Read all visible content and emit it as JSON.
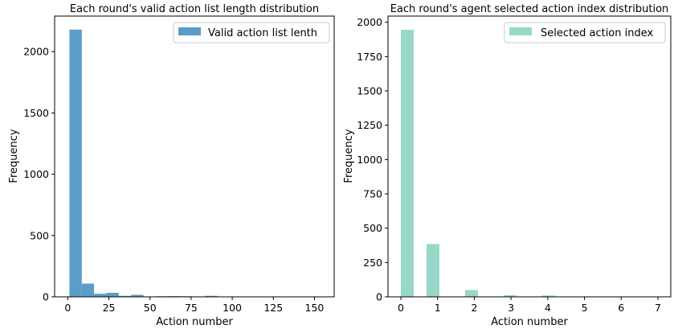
{
  "chart_data": [
    {
      "type": "bar",
      "title": "Each round's valid action list length distribution",
      "xlabel": "Action number",
      "ylabel": "Frequency",
      "xlim": [
        -8,
        162
      ],
      "ylim": [
        0,
        2290
      ],
      "xticks": [
        0,
        25,
        50,
        75,
        100,
        125,
        150
      ],
      "yticks": [
        0,
        500,
        1000,
        1500,
        2000
      ],
      "color": "#5a9dc9",
      "legend": {
        "label": "Valid action list lenth",
        "position": "top-right"
      },
      "grid": false,
      "bins": [
        {
          "x0": 1.0,
          "x1": 8.5,
          "value": 2180
        },
        {
          "x0": 8.5,
          "x1": 16.0,
          "value": 108
        },
        {
          "x0": 16.0,
          "x1": 23.5,
          "value": 25
        },
        {
          "x0": 23.5,
          "x1": 31.0,
          "value": 33
        },
        {
          "x0": 31.0,
          "x1": 38.5,
          "value": 8
        },
        {
          "x0": 38.5,
          "x1": 46.0,
          "value": 16
        },
        {
          "x0": 46.0,
          "x1": 53.5,
          "value": 3
        },
        {
          "x0": 53.5,
          "x1": 61.0,
          "value": 5
        },
        {
          "x0": 61.0,
          "x1": 68.5,
          "value": 6
        },
        {
          "x0": 68.5,
          "x1": 76.0,
          "value": 5
        },
        {
          "x0": 76.0,
          "x1": 83.5,
          "value": 2
        },
        {
          "x0": 83.5,
          "x1": 91.0,
          "value": 8
        },
        {
          "x0": 91.0,
          "x1": 98.5,
          "value": 2
        },
        {
          "x0": 98.5,
          "x1": 106.0,
          "value": 2
        },
        {
          "x0": 106.0,
          "x1": 113.5,
          "value": 2
        },
        {
          "x0": 113.5,
          "x1": 121.0,
          "value": 1
        },
        {
          "x0": 121.0,
          "x1": 128.5,
          "value": 1
        },
        {
          "x0": 128.5,
          "x1": 136.0,
          "value": 1
        },
        {
          "x0": 136.0,
          "x1": 143.5,
          "value": 1
        },
        {
          "x0": 143.5,
          "x1": 151.0,
          "value": 1
        }
      ]
    },
    {
      "type": "bar",
      "title": "Each round's agent selected action index distribution",
      "xlabel": "Action number",
      "ylabel": "Frequency",
      "xlim": [
        -0.35,
        7.35
      ],
      "ylim": [
        0,
        2045
      ],
      "xticks": [
        0,
        1,
        2,
        3,
        4,
        5,
        6,
        7
      ],
      "yticks": [
        0,
        250,
        500,
        750,
        1000,
        1250,
        1500,
        1750,
        2000
      ],
      "color": "#98d8c9",
      "legend": {
        "label": "Selected action index",
        "position": "top-right"
      },
      "grid": false,
      "bins": [
        {
          "x0": 0.0,
          "x1": 0.35,
          "value": 1945
        },
        {
          "x0": 0.7,
          "x1": 1.05,
          "value": 385
        },
        {
          "x0": 1.75,
          "x1": 2.1,
          "value": 50
        },
        {
          "x0": 2.8,
          "x1": 3.15,
          "value": 12
        },
        {
          "x0": 3.85,
          "x1": 4.2,
          "value": 10
        },
        {
          "x0": 4.9,
          "x1": 5.25,
          "value": 2
        },
        {
          "x0": 5.95,
          "x1": 6.3,
          "value": 1
        },
        {
          "x0": 6.65,
          "x1": 7.0,
          "value": 1
        }
      ]
    }
  ]
}
